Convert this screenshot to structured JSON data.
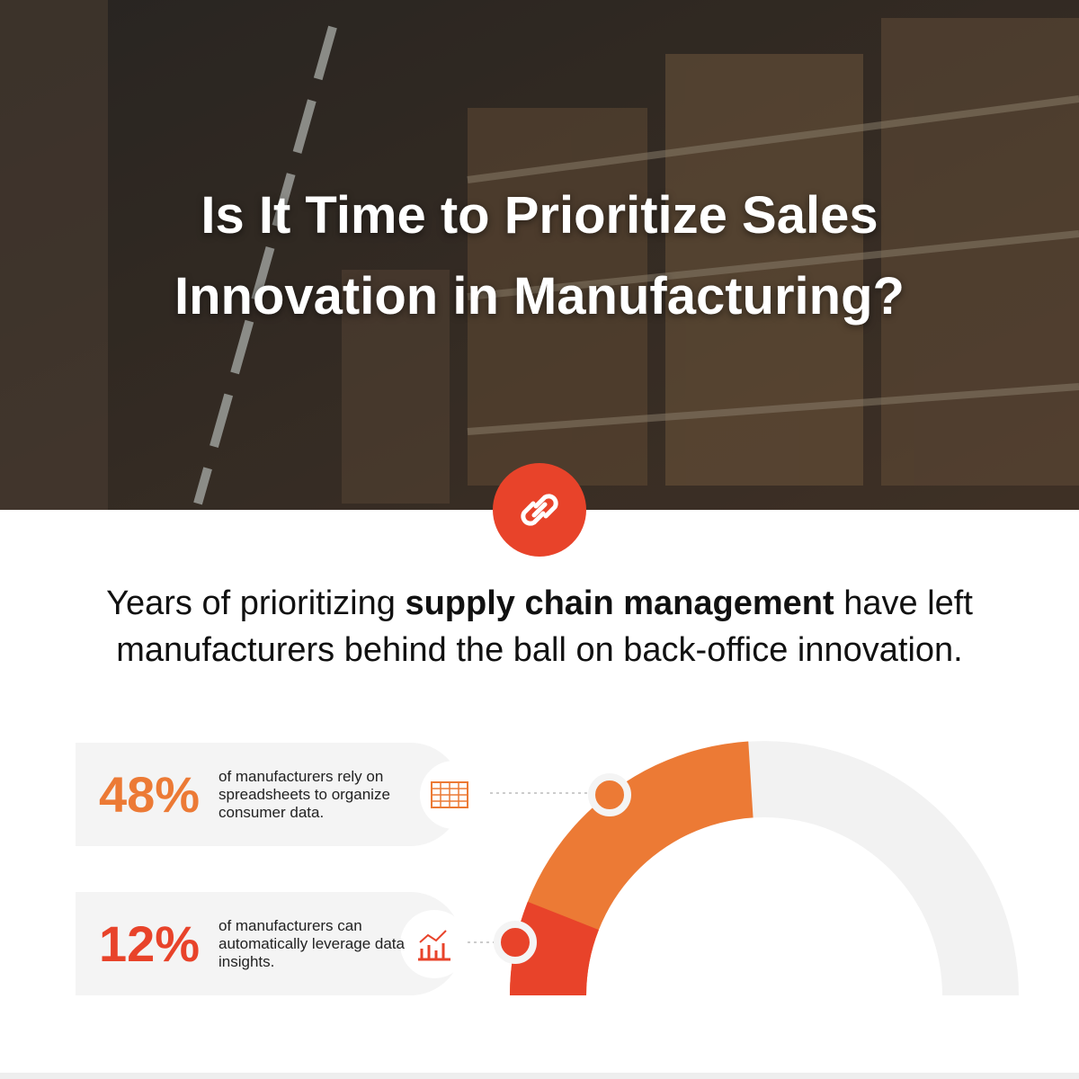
{
  "header": {
    "title": "Is It Time to Prioritize Sales Innovation in Manufacturing?"
  },
  "intro": {
    "before": "Years of prioritizing",
    "bold": "supply chain management",
    "after": "have left manufacturers behind the ball on back-office innovation."
  },
  "chart_data": {
    "type": "gauge",
    "ylim": [
      0,
      100
    ],
    "values": [
      48,
      12
    ],
    "value_labels": [
      "48%",
      "12%"
    ],
    "descriptions": [
      "of manufacturers rely on spreadsheets to organize consumer data.",
      "of manufacturers can automatically leverage data insights."
    ],
    "colors": [
      "#ec7a35",
      "#e8432a"
    ],
    "track_color": "#f2f2f2"
  }
}
